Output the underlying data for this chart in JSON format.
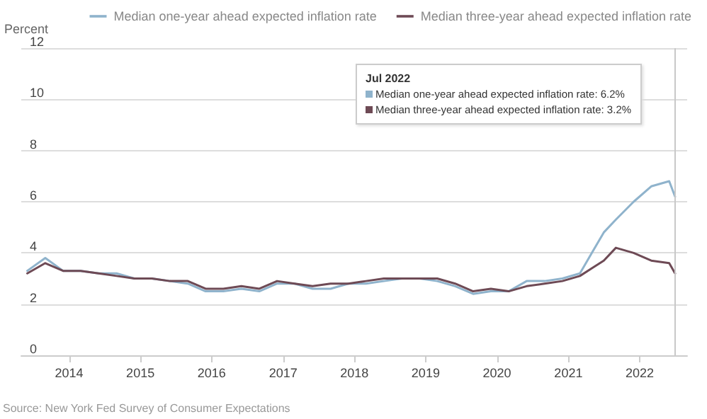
{
  "chart_data": {
    "type": "line",
    "ylabel": "Percent",
    "xlim": [
      "2013-05",
      "2022-09"
    ],
    "xticks": [
      "2014",
      "2015",
      "2016",
      "2017",
      "2018",
      "2019",
      "2020",
      "2021",
      "2022"
    ],
    "ylim": [
      0,
      12
    ],
    "yticks": [
      0,
      2,
      4,
      6,
      8,
      10,
      12
    ],
    "grid": "y",
    "legend": "top",
    "marker": "none",
    "line_style": "solid",
    "x": [
      "2013-06",
      "2013-09",
      "2013-12",
      "2014-03",
      "2014-06",
      "2014-09",
      "2014-12",
      "2015-03",
      "2015-06",
      "2015-09",
      "2015-12",
      "2016-03",
      "2016-06",
      "2016-09",
      "2016-12",
      "2017-03",
      "2017-06",
      "2017-09",
      "2017-12",
      "2018-03",
      "2018-06",
      "2018-09",
      "2018-12",
      "2019-03",
      "2019-06",
      "2019-09",
      "2019-12",
      "2020-03",
      "2020-06",
      "2020-09",
      "2020-12",
      "2021-03",
      "2021-05",
      "2021-07",
      "2021-09",
      "2021-12",
      "2022-03",
      "2022-06",
      "2022-07"
    ],
    "series": [
      {
        "name": "Median one-year ahead expected inflation rate",
        "color": "#8fb3cc",
        "values": [
          3.3,
          3.8,
          3.3,
          3.3,
          3.2,
          3.2,
          3.0,
          3.0,
          2.9,
          2.8,
          2.5,
          2.5,
          2.6,
          2.5,
          2.8,
          2.8,
          2.6,
          2.6,
          2.8,
          2.8,
          2.9,
          3.0,
          3.0,
          2.9,
          2.7,
          2.4,
          2.5,
          2.5,
          2.9,
          2.9,
          3.0,
          3.2,
          4.0,
          4.8,
          5.3,
          6.0,
          6.6,
          6.8,
          6.2
        ]
      },
      {
        "name": "Median three-year ahead expected inflation rate",
        "color": "#6e4a55",
        "values": [
          3.2,
          3.6,
          3.3,
          3.3,
          3.2,
          3.1,
          3.0,
          3.0,
          2.9,
          2.9,
          2.6,
          2.6,
          2.7,
          2.6,
          2.9,
          2.8,
          2.7,
          2.8,
          2.8,
          2.9,
          3.0,
          3.0,
          3.0,
          3.0,
          2.8,
          2.5,
          2.6,
          2.5,
          2.7,
          2.8,
          2.9,
          3.1,
          3.4,
          3.7,
          4.2,
          4.0,
          3.7,
          3.6,
          3.2
        ]
      }
    ],
    "ref_lines": [
      {
        "axis": "x",
        "value": "2022-07",
        "color": "#c8c8c8"
      }
    ],
    "annotations": [
      "Jul 2022",
      "Median one-year ahead expected inflation rate: 6.2%",
      "Median three-year ahead expected inflation rate: 3.2%",
      "Source: New York Fed Survey of Consumer Expectations"
    ]
  }
}
